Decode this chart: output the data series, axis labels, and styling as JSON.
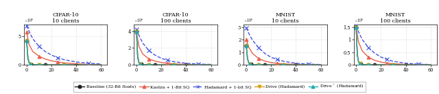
{
  "panels": [
    {
      "title": "CIFAR-10",
      "subtitle": "10 clients",
      "ylim": [
        0,
        7000000.0
      ],
      "yticks": [
        0,
        5000000.0
      ],
      "yscale": 1000000.0,
      "yticklabels": [
        "0",
        "5"
      ]
    },
    {
      "title": "CIFAR-10",
      "subtitle": "100 clients",
      "ylim": [
        0,
        4800000.0
      ],
      "yticks": [
        0,
        2000000.0,
        4000000.0
      ],
      "yscale": 1000000.0,
      "yticklabels": [
        "0",
        "2",
        "4"
      ]
    },
    {
      "title": "MNIST",
      "subtitle": "10 clients",
      "ylim": [
        0,
        3200000.0
      ],
      "yticks": [
        0,
        1000000.0,
        2000000.0,
        3000000.0
      ],
      "yscale": 1000000.0,
      "yticklabels": [
        "0",
        "1",
        "2",
        "3"
      ]
    },
    {
      "title": "MNIST",
      "subtitle": "100 clients",
      "ylim": [
        0,
        1600000.0
      ],
      "yticks": [
        0,
        500000.0,
        1000000.0,
        1500000.0
      ],
      "yscale": 1000000.0,
      "yticklabels": [
        "0",
        "0.5",
        "1",
        "1.5"
      ]
    }
  ],
  "xlim": [
    -2,
    65
  ],
  "xticks": [
    0,
    20,
    40,
    60
  ],
  "series": [
    {
      "label": "Baseline (32-Bit floats)",
      "color": "#1a1a1a",
      "linestyle": "-",
      "marker": "o",
      "markersize": 3.5,
      "linewidth": 1.0,
      "data": [
        [
          [
            0,
            4200000.0
          ],
          [
            1,
            1200000.0
          ],
          [
            2,
            350000.0
          ],
          [
            4,
            80000.0
          ],
          [
            6,
            30000.0
          ],
          [
            10,
            10000.0
          ],
          [
            15,
            4000.0
          ],
          [
            20,
            2000.0
          ],
          [
            30,
            1000.0
          ],
          [
            40,
            500.0
          ],
          [
            60,
            300.0
          ]
        ],
        [
          [
            0,
            4000000.0
          ],
          [
            1,
            900000.0
          ],
          [
            2,
            250000.0
          ],
          [
            4,
            60000.0
          ],
          [
            6,
            20000.0
          ],
          [
            10,
            7000.0
          ],
          [
            15,
            3000.0
          ],
          [
            20,
            1000.0
          ],
          [
            30,
            600.0
          ],
          [
            40,
            300.0
          ],
          [
            60,
            200.0
          ]
        ],
        [
          [
            0,
            1500000.0
          ],
          [
            1,
            500000.0
          ],
          [
            2,
            150000.0
          ],
          [
            4,
            40000.0
          ],
          [
            6,
            15000.0
          ],
          [
            10,
            5000.0
          ],
          [
            15,
            2000.0
          ],
          [
            20,
            1000.0
          ],
          [
            30,
            500.0
          ],
          [
            40,
            300.0
          ],
          [
            60,
            200.0
          ]
        ],
        [
          [
            0,
            1500000.0
          ],
          [
            1,
            400000.0
          ],
          [
            2,
            100000.0
          ],
          [
            4,
            25000.0
          ],
          [
            6,
            10000.0
          ],
          [
            10,
            3000.0
          ],
          [
            15,
            1000.0
          ],
          [
            20,
            700.0
          ],
          [
            30,
            300.0
          ],
          [
            40,
            200.0
          ],
          [
            60,
            100.0
          ]
        ]
      ]
    },
    {
      "label": "Kashin + 1-Bit SQ",
      "color": "#e8604c",
      "linestyle": "-",
      "marker": "^",
      "markersize": 3.5,
      "linewidth": 1.0,
      "data": [
        [
          [
            0,
            5700000.0
          ],
          [
            2,
            3500000.0
          ],
          [
            5,
            2300000.0
          ],
          [
            10,
            1500000.0
          ],
          [
            15,
            1000000.0
          ],
          [
            20,
            700000.0
          ],
          [
            25,
            500000.0
          ],
          [
            30,
            350000.0
          ],
          [
            40,
            180000.0
          ],
          [
            50,
            90000.0
          ],
          [
            60,
            50000.0
          ]
        ],
        [
          [
            0,
            3900000.0
          ],
          [
            2,
            2200000.0
          ],
          [
            5,
            1300000.0
          ],
          [
            10,
            700000.0
          ],
          [
            15,
            450000.0
          ],
          [
            20,
            280000.0
          ],
          [
            25,
            180000.0
          ],
          [
            30,
            120000.0
          ],
          [
            40,
            60000.0
          ],
          [
            50,
            30000.0
          ],
          [
            60,
            15000.0
          ]
        ],
        [
          [
            0,
            2000000.0
          ],
          [
            2,
            1400000.0
          ],
          [
            5,
            900000.0
          ],
          [
            10,
            500000.0
          ],
          [
            15,
            300000.0
          ],
          [
            20,
            180000.0
          ],
          [
            25,
            120000.0
          ],
          [
            30,
            80000.0
          ],
          [
            40,
            40000.0
          ],
          [
            50,
            20000.0
          ],
          [
            60,
            10000.0
          ]
        ],
        [
          [
            0,
            1500000.0
          ],
          [
            2,
            900000.0
          ],
          [
            5,
            550000.0
          ],
          [
            10,
            300000.0
          ],
          [
            15,
            180000.0
          ],
          [
            20,
            110000.0
          ],
          [
            25,
            70000.0
          ],
          [
            30,
            45000.0
          ],
          [
            40,
            20000.0
          ],
          [
            50,
            10000.0
          ],
          [
            60,
            6000.0
          ]
        ]
      ]
    },
    {
      "label": "Hadamard + 1-bit SQ",
      "color": "#4455dd",
      "linestyle": "--",
      "marker": "x",
      "markersize": 4.5,
      "linewidth": 1.0,
      "data": [
        [
          [
            0,
            6800000.0
          ],
          [
            2,
            5800000.0
          ],
          [
            5,
            4500000.0
          ],
          [
            10,
            3200000.0
          ],
          [
            15,
            2300000.0
          ],
          [
            20,
            1700000.0
          ],
          [
            25,
            1250000.0
          ],
          [
            30,
            900000.0
          ],
          [
            40,
            500000.0
          ],
          [
            50,
            280000.0
          ],
          [
            60,
            160000.0
          ]
        ],
        [
          [
            0,
            4200000.0
          ],
          [
            2,
            3500000.0
          ],
          [
            5,
            2600000.0
          ],
          [
            10,
            1700000.0
          ],
          [
            15,
            1150000.0
          ],
          [
            20,
            780000.0
          ],
          [
            25,
            550000.0
          ],
          [
            30,
            380000.0
          ],
          [
            40,
            190000.0
          ],
          [
            50,
            100000.0
          ],
          [
            60,
            55000.0
          ]
        ],
        [
          [
            0,
            2950000.0
          ],
          [
            2,
            2500000.0
          ],
          [
            5,
            1950000.0
          ],
          [
            10,
            1350000.0
          ],
          [
            15,
            900000.0
          ],
          [
            20,
            600000.0
          ],
          [
            25,
            420000.0
          ],
          [
            30,
            280000.0
          ],
          [
            40,
            130000.0
          ],
          [
            50,
            60000.0
          ],
          [
            60,
            30000.0
          ]
        ],
        [
          [
            0,
            1550000.0
          ],
          [
            2,
            1300000.0
          ],
          [
            5,
            1000000.0
          ],
          [
            10,
            680000.0
          ],
          [
            15,
            460000.0
          ],
          [
            20,
            310000.0
          ],
          [
            25,
            210000.0
          ],
          [
            30,
            140000.0
          ],
          [
            40,
            65000.0
          ],
          [
            50,
            30000.0
          ],
          [
            60,
            15000.0
          ]
        ]
      ]
    },
    {
      "label": "Drive (Hadamard)",
      "color": "#d4a017",
      "linestyle": "-",
      "marker": "v",
      "markersize": 3.5,
      "linewidth": 1.0,
      "data": [
        [
          [
            0,
            4200000.0
          ],
          [
            1,
            1500000.0
          ],
          [
            2,
            500000.0
          ],
          [
            3,
            180000.0
          ],
          [
            5,
            60000.0
          ],
          [
            8,
            20000.0
          ],
          [
            10,
            10000.0
          ],
          [
            15,
            4000.0
          ],
          [
            20,
            2000.0
          ],
          [
            30,
            1000.0
          ],
          [
            40,
            500.0
          ],
          [
            60,
            300.0
          ]
        ],
        [
          [
            0,
            4000000.0
          ],
          [
            1,
            1200000.0
          ],
          [
            2,
            350000.0
          ],
          [
            3,
            120000.0
          ],
          [
            5,
            40000.0
          ],
          [
            8,
            14000.0
          ],
          [
            10,
            7000.0
          ],
          [
            15,
            3000.0
          ],
          [
            20,
            1000.0
          ],
          [
            30,
            600.0
          ],
          [
            40,
            300.0
          ],
          [
            60,
            200.0
          ]
        ],
        [
          [
            0,
            1500000.0
          ],
          [
            1,
            550000.0
          ],
          [
            2,
            180000.0
          ],
          [
            3,
            70000.0
          ],
          [
            5,
            25000.0
          ],
          [
            8,
            9000.0
          ],
          [
            10,
            5000.0
          ],
          [
            15,
            2000.0
          ],
          [
            20,
            1000.0
          ],
          [
            30,
            500.0
          ],
          [
            40,
            300.0
          ],
          [
            60,
            200.0
          ]
        ],
        [
          [
            0,
            1500000.0
          ],
          [
            1,
            450000.0
          ],
          [
            2,
            140000.0
          ],
          [
            3,
            50000.0
          ],
          [
            5,
            18000.0
          ],
          [
            8,
            7000.0
          ],
          [
            10,
            4000.0
          ],
          [
            15,
            1500.0
          ],
          [
            20,
            700.0
          ],
          [
            30,
            300.0
          ],
          [
            40,
            200.0
          ],
          [
            60,
            100.0
          ]
        ]
      ]
    },
    {
      "label": "Drive$^+$ (Hadamard)",
      "color": "#22aaaa",
      "linestyle": "-",
      "marker": "^",
      "markersize": 3.5,
      "linewidth": 1.0,
      "data": [
        [
          [
            0,
            4200000.0
          ],
          [
            1,
            1300000.0
          ],
          [
            2,
            400000.0
          ],
          [
            3,
            140000.0
          ],
          [
            5,
            45000.0
          ],
          [
            8,
            15000.0
          ],
          [
            10,
            7000.0
          ],
          [
            15,
            3000.0
          ],
          [
            20,
            1500.0
          ],
          [
            30,
            800.0
          ],
          [
            40,
            400.0
          ],
          [
            60,
            200.0
          ]
        ],
        [
          [
            0,
            4000000.0
          ],
          [
            1,
            1000000.0
          ],
          [
            2,
            280000.0
          ],
          [
            3,
            90000.0
          ],
          [
            5,
            30000.0
          ],
          [
            8,
            10000.0
          ],
          [
            10,
            5000.0
          ],
          [
            15,
            2200.0
          ],
          [
            20,
            1000.0
          ],
          [
            30,
            500.0
          ],
          [
            40,
            300.0
          ],
          [
            60,
            200.0
          ]
        ],
        [
          [
            0,
            1500000.0
          ],
          [
            1,
            500000.0
          ],
          [
            2,
            150000.0
          ],
          [
            3,
            55000.0
          ],
          [
            5,
            20000.0
          ],
          [
            8,
            7000.0
          ],
          [
            10,
            3500.0
          ],
          [
            15,
            1500.0
          ],
          [
            20,
            800.0
          ],
          [
            30,
            400.0
          ],
          [
            40,
            200.0
          ],
          [
            60,
            100.0
          ]
        ],
        [
          [
            0,
            1500000.0
          ],
          [
            1,
            400000.0
          ],
          [
            2,
            110000.0
          ],
          [
            3,
            40000.0
          ],
          [
            5,
            14000.0
          ],
          [
            8,
            5000.0
          ],
          [
            10,
            2500.0
          ],
          [
            15,
            1000.0
          ],
          [
            20,
            500.0
          ],
          [
            30,
            300.0
          ],
          [
            40,
            100.0
          ],
          [
            60,
            80.0
          ]
        ]
      ]
    }
  ],
  "legend_items": [
    {
      "label": "Baseline (32-Bit floats)",
      "color": "#1a1a1a",
      "linestyle": "-",
      "marker": "o",
      "markerfilled": true
    },
    {
      "label": "Kashin + 1-Bit SQ",
      "color": "#e8604c",
      "linestyle": "-",
      "marker": "^",
      "markerfilled": true
    },
    {
      "label": "Hadamard + 1-bit SQ",
      "color": "#4455dd",
      "linestyle": "--",
      "marker": "x",
      "markerfilled": false
    },
    {
      "label": "Drive (Hadamard)",
      "color": "#d4a017",
      "linestyle": "-",
      "marker": "v",
      "markerfilled": true
    },
    {
      "label": "Drive$^+$ (Hadamard)",
      "color": "#22aaaa",
      "linestyle": "-",
      "marker": "^",
      "markerfilled": true
    }
  ]
}
